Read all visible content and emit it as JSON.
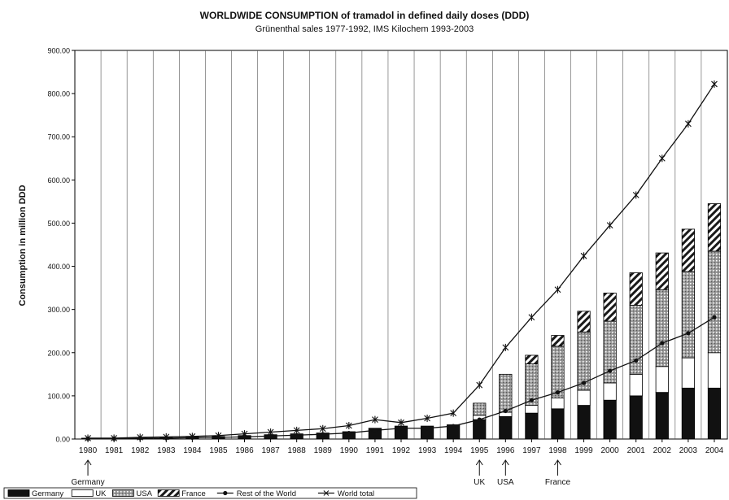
{
  "chart_data": {
    "type": "bar",
    "title": "WORLDWIDE CONSUMPTION of tramadol in defined daily doses (DDD)",
    "subtitle": "Grünenthal sales 1977-1992, IMS Kilochem 1993-2003",
    "ylabel": "Consumption in million DDD",
    "xlabel": "",
    "ylim": [
      0,
      900
    ],
    "yticks": [
      "0.00",
      "100.00",
      "200.00",
      "300.00",
      "400.00",
      "500.00",
      "600.00",
      "700.00",
      "800.00",
      "900.00"
    ],
    "categories": [
      "1980",
      "1981",
      "1982",
      "1983",
      "1984",
      "1985",
      "1986",
      "1987",
      "1988",
      "1989",
      "1990",
      "1991",
      "1992",
      "1993",
      "1994",
      "1995",
      "1996",
      "1997",
      "1998",
      "1999",
      "2000",
      "2001",
      "2002",
      "2003",
      "2004"
    ],
    "stacked_bars": [
      {
        "name": "Germany",
        "pattern": "solid-black",
        "values": [
          2,
          2,
          3,
          4,
          5,
          6,
          8,
          10,
          12,
          14,
          17,
          25,
          30,
          30,
          33,
          45,
          52,
          60,
          70,
          78,
          90,
          100,
          108,
          118,
          118
        ]
      },
      {
        "name": "UK",
        "pattern": "white",
        "values": [
          0,
          0,
          0,
          0,
          0,
          0,
          0,
          0,
          0,
          0,
          0,
          0,
          0,
          0,
          0,
          10,
          10,
          18,
          25,
          35,
          40,
          50,
          60,
          70,
          82
        ]
      },
      {
        "name": "USA",
        "pattern": "gray-dotted",
        "values": [
          0,
          0,
          0,
          0,
          0,
          0,
          0,
          0,
          0,
          0,
          0,
          0,
          0,
          0,
          0,
          28,
          88,
          96,
          120,
          135,
          143,
          160,
          178,
          200,
          235
        ]
      },
      {
        "name": "France",
        "pattern": "diagonal-hatch",
        "values": [
          0,
          0,
          0,
          0,
          0,
          0,
          0,
          0,
          0,
          0,
          0,
          0,
          0,
          0,
          0,
          0,
          0,
          20,
          25,
          48,
          65,
          75,
          85,
          98,
          110
        ]
      }
    ],
    "lines": [
      {
        "name": "Rest of the World",
        "marker": "dot",
        "values": [
          1,
          1,
          2,
          2,
          3,
          4,
          5,
          7,
          9,
          11,
          14,
          20,
          25,
          25,
          30,
          45,
          65,
          90,
          108,
          130,
          158,
          182,
          222,
          245,
          282
        ]
      },
      {
        "name": "World total",
        "marker": "star",
        "values": [
          2,
          2,
          4,
          5,
          6,
          8,
          12,
          16,
          20,
          24,
          31,
          45,
          38,
          48,
          60,
          125,
          212,
          282,
          346,
          424,
          495,
          565,
          650,
          730,
          822
        ]
      }
    ],
    "annotations": [
      {
        "label": "Germany",
        "year": "1980"
      },
      {
        "label": "UK",
        "year": "1995"
      },
      {
        "label": "USA",
        "year": "1996"
      },
      {
        "label": "France",
        "year": "1998"
      }
    ],
    "grid": "vertical",
    "legend_position": "bottom-left"
  }
}
